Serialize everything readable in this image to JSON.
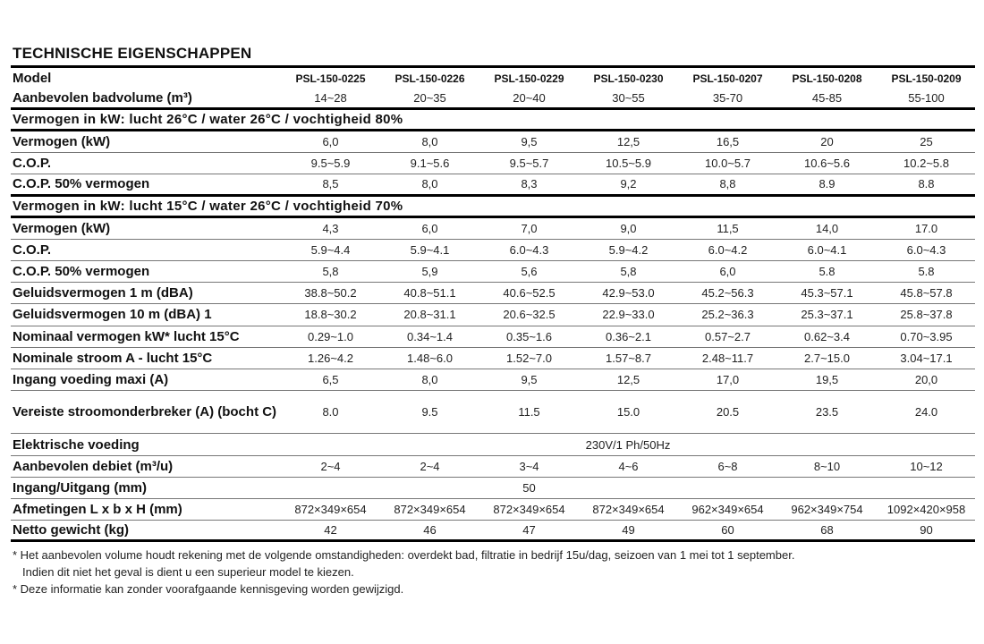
{
  "title": "TECHNISCHE EIGENSCHAPPEN",
  "rows": [
    {
      "type": "hdr",
      "label": "Model",
      "values": [
        "PSL-150-0225",
        "PSL-150-0226",
        "PSL-150-0229",
        "PSL-150-0230",
        "PSL-150-0207",
        "PSL-150-0208",
        "PSL-150-0209"
      ]
    },
    {
      "type": "hdr2",
      "label": "Aanbevolen badvolume (m³)",
      "values": [
        "14~28",
        "20~35",
        "20~40",
        "30~55",
        "35-70",
        "45-85",
        "55-100"
      ]
    },
    {
      "type": "sec",
      "label": "Vermogen in kW: lucht 26°C / water 26°C / vochtigheid 80%"
    },
    {
      "type": "row",
      "label": "Vermogen (kW)",
      "values": [
        "6,0",
        "8,0",
        "9,5",
        "12,5",
        "16,5",
        "20",
        "25"
      ]
    },
    {
      "type": "row",
      "label": "C.O.P.",
      "values": [
        "9.5~5.9",
        "9.1~5.6",
        "9.5~5.7",
        "10.5~5.9",
        "10.0~5.7",
        "10.6~5.6",
        "10.2~5.8"
      ]
    },
    {
      "type": "before-sec",
      "label": "C.O.P. 50% vermogen",
      "values": [
        "8,5",
        "8,0",
        "8,3",
        "9,2",
        "8,8",
        "8.9",
        "8.8"
      ]
    },
    {
      "type": "sec",
      "label": "Vermogen in kW: lucht 15°C / water 26°C / vochtigheid 70%"
    },
    {
      "type": "row",
      "label": "Vermogen (kW)",
      "values": [
        "4,3",
        "6,0",
        "7,0",
        "9,0",
        "11,5",
        "14,0",
        "17.0"
      ]
    },
    {
      "type": "row",
      "label": "C.O.P.",
      "values": [
        "5.9~4.4",
        "5.9~4.1",
        "6.0~4.3",
        "5.9~4.2",
        "6.0~4.2",
        "6.0~4.1",
        "6.0~4.3"
      ]
    },
    {
      "type": "row",
      "label": "C.O.P. 50% vermogen",
      "values": [
        "5,8",
        "5,9",
        "5,6",
        "5,8",
        "6,0",
        "5.8",
        "5.8"
      ]
    },
    {
      "type": "row",
      "label": "Geluidsvermogen 1 m (dBA)",
      "values": [
        "38.8~50.2",
        "40.8~51.1",
        "40.6~52.5",
        "42.9~53.0",
        "45.2~56.3",
        "45.3~57.1",
        "45.8~57.8"
      ]
    },
    {
      "type": "row",
      "label": "Geluidsvermogen 10 m (dBA) 1",
      "values": [
        "18.8~30.2",
        "20.8~31.1",
        "20.6~32.5",
        "22.9~33.0",
        "25.2~36.3",
        "25.3~37.1",
        "25.8~37.8"
      ]
    },
    {
      "type": "row",
      "label": "Nominaal vermogen kW* lucht 15°C",
      "values": [
        "0.29~1.0",
        "0.34~1.4",
        "0.35~1.6",
        "0.36~2.1",
        "0.57~2.7",
        "0.62~3.4",
        "0.70~3.95"
      ]
    },
    {
      "type": "row",
      "label": "Nominale stroom A - lucht 15°C",
      "values": [
        "1.26~4.2",
        "1.48~6.0",
        "1.52~7.0",
        "1.57~8.7",
        "2.48~11.7",
        "2.7~15.0",
        "3.04~17.1"
      ]
    },
    {
      "type": "row",
      "label": "Ingang voeding maxi (A)",
      "values": [
        "6,5",
        "8,0",
        "9,5",
        "12,5",
        "17,0",
        "19,5",
        "20,0"
      ]
    },
    {
      "type": "dbl",
      "label": "Vereiste stroomonderbreker (A) (bocht C)",
      "values": [
        "8.0",
        "9.5",
        "11.5",
        "15.0",
        "20.5",
        "23.5",
        "24.0"
      ]
    },
    {
      "type": "span",
      "label": "Elektrische voeding",
      "value": "230V/1 Ph/50Hz",
      "align": "center"
    },
    {
      "type": "row",
      "label": "Aanbevolen debiet (m³/u)",
      "values": [
        "2~4",
        "2~4",
        "3~4",
        "4~6",
        "6~8",
        "8~10",
        "10~12"
      ]
    },
    {
      "type": "span3",
      "label": "Ingang/Uitgang (mm)",
      "value": "50"
    },
    {
      "type": "row",
      "label": "Afmetingen L x b x H (mm)",
      "values": [
        "872×349×654",
        "872×349×654",
        "872×349×654",
        "872×349×654",
        "962×349×654",
        "962×349×754",
        "1092×420×958"
      ]
    },
    {
      "type": "last",
      "label": "Netto gewicht (kg)",
      "values": [
        "42",
        "46",
        "47",
        "49",
        "60",
        "68",
        "90"
      ]
    }
  ],
  "notes": [
    "* Het aanbevolen volume houdt rekening met de volgende omstandigheden: overdekt bad, filtratie in bedrijf 15u/dag, seizoen van 1 mei tot 1 september.",
    "Indien dit niet het geval is dient u een superieur model te kiezen.",
    "* Deze informatie kan zonder voorafgaande kennisgeving worden gewijzigd."
  ]
}
